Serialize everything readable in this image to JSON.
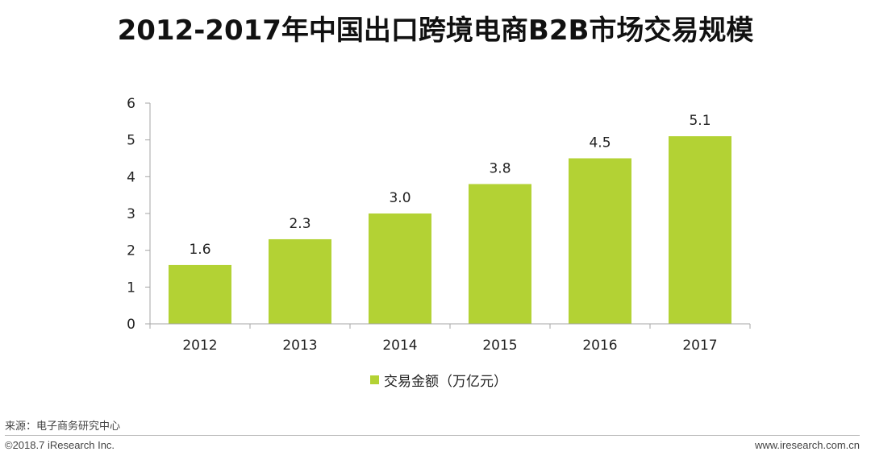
{
  "title": "2012-2017年中国出口跨境电商B2B市场交易规模",
  "source": "来源：电子商务研究中心",
  "copyright": "©2018.7 iResearch Inc.",
  "site": "www.iresearch.com.cn",
  "colors": {
    "bar": "#b3d234",
    "axis": "#a6a6a6"
  },
  "chart_data": {
    "type": "bar",
    "categories": [
      "2012",
      "2013",
      "2014",
      "2015",
      "2016",
      "2017"
    ],
    "series": [
      {
        "name": "交易金额（万亿元）",
        "values": [
          1.6,
          2.3,
          3.0,
          3.8,
          4.5,
          5.1
        ],
        "labels": [
          "1.6",
          "2.3",
          "3.0",
          "3.8",
          "4.5",
          "5.1"
        ]
      }
    ],
    "title": "2012-2017年中国出口跨境电商B2B市场交易规模",
    "xlabel": "",
    "ylabel": "",
    "ylim": [
      0,
      6
    ],
    "yticks": [
      0,
      1,
      2,
      3,
      4,
      5,
      6
    ],
    "grid": false,
    "legend": "bottom"
  }
}
